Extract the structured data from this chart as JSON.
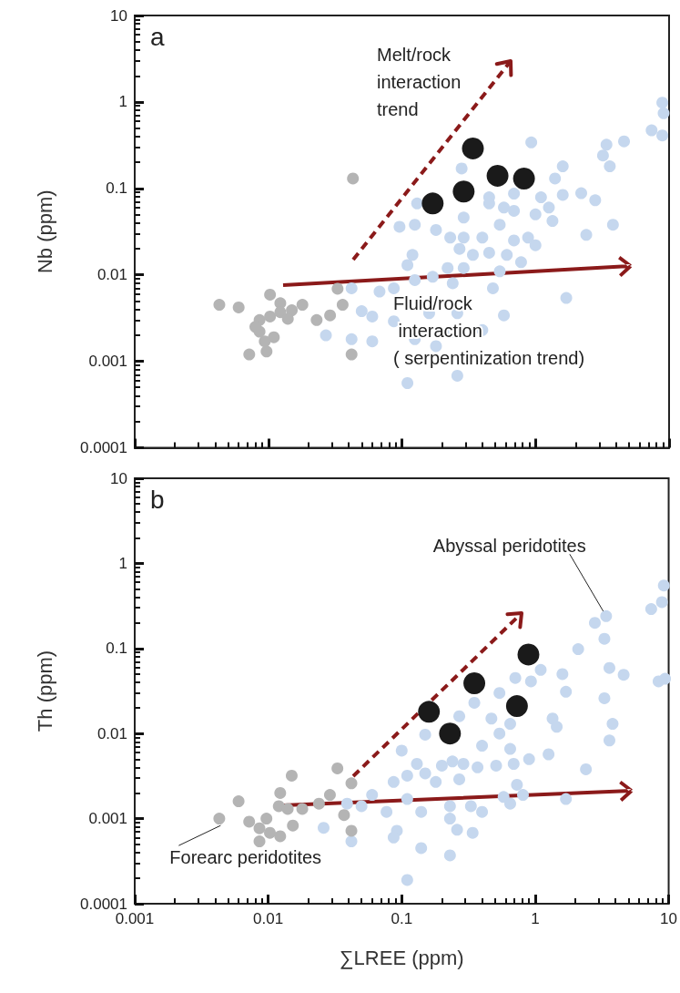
{
  "chart_data": [
    {
      "type": "scatter",
      "title": "a",
      "ylabel": "Nb (ppm)",
      "log": "xy",
      "xlim": [
        0.001,
        10
      ],
      "xticks": [
        0.001,
        0.01,
        0.1,
        1,
        10
      ],
      "ylim": [
        0.0001,
        10
      ],
      "yticks": [
        0.0001,
        0.001,
        0.01,
        0.1,
        1,
        10
      ],
      "tick_labels": "y",
      "grid": false,
      "marker": "circle",
      "annotations": [
        "Melt/rock\ninteraction\ntrend",
        "Fluid/rock\n interaction\n( serpentinization trend)"
      ],
      "series": [
        {
          "color": "#c5d7ee",
          "x": [
            8.9,
            9.1,
            7.4,
            8.9,
            4.6,
            3.4,
            3.2,
            3.6,
            1.6,
            1.4,
            0.93,
            0.28,
            2.8,
            2.2,
            1.6,
            1.26,
            1.1,
            0.69,
            0.58,
            0.45,
            0.45,
            0.69,
            3.8,
            2.4,
            1.0,
            1.34,
            0.29,
            0.13,
            0.096,
            0.125,
            0.18,
            0.23,
            0.29,
            0.4,
            0.54,
            0.69,
            0.88,
            1.0,
            0.27,
            0.34,
            0.45,
            0.61,
            0.78,
            0.54,
            0.29,
            0.22,
            0.12,
            0.11,
            0.125,
            0.17,
            0.24,
            0.48,
            1.7,
            0.042,
            0.068,
            0.087,
            0.05,
            0.06,
            0.16,
            0.26,
            0.58,
            0.027,
            0.042,
            0.06,
            0.125,
            0.24,
            0.4,
            0.26,
            0.11,
            0.18,
            0.087
          ],
          "values": [
            0.98,
            0.74,
            0.47,
            0.41,
            0.35,
            0.32,
            0.24,
            0.18,
            0.18,
            0.13,
            0.34,
            0.17,
            0.073,
            0.088,
            0.084,
            0.06,
            0.079,
            0.087,
            0.06,
            0.079,
            0.067,
            0.055,
            0.038,
            0.029,
            0.05,
            0.042,
            0.046,
            0.067,
            0.036,
            0.038,
            0.033,
            0.027,
            0.027,
            0.027,
            0.038,
            0.025,
            0.027,
            0.022,
            0.02,
            0.017,
            0.018,
            0.017,
            0.014,
            0.011,
            0.012,
            0.012,
            0.017,
            0.013,
            0.0087,
            0.0095,
            0.008,
            0.007,
            0.0054,
            0.007,
            0.0064,
            0.007,
            0.0038,
            0.0033,
            0.0036,
            0.0036,
            0.0034,
            0.002,
            0.0018,
            0.0017,
            0.0018,
            0.0022,
            0.0023,
            0.00068,
            0.00056,
            0.0015,
            0.0029
          ]
        },
        {
          "color": "#b4b4b4",
          "x": [
            0.043,
            0.0043,
            0.006,
            0.0103,
            0.0123,
            0.015,
            0.018,
            0.0086,
            0.0103,
            0.0123,
            0.0086,
            0.011,
            0.0094,
            0.0072,
            0.0097,
            0.023,
            0.029,
            0.033,
            0.036,
            0.042,
            0.014,
            0.008
          ],
          "values": [
            0.13,
            0.0045,
            0.0042,
            0.0059,
            0.0047,
            0.0039,
            0.0045,
            0.003,
            0.0033,
            0.0037,
            0.0022,
            0.0019,
            0.0017,
            0.0012,
            0.0013,
            0.003,
            0.0034,
            0.0069,
            0.0045,
            0.0012,
            0.0031,
            0.0025
          ]
        },
        {
          "color": "#1a1a1a",
          "x": [
            0.17,
            0.29,
            0.34,
            0.52,
            0.82
          ],
          "values": [
            0.067,
            0.092,
            0.29,
            0.14,
            0.13
          ]
        }
      ]
    },
    {
      "type": "scatter",
      "title": "b",
      "xlabel": "∑LREE (ppm)",
      "ylabel": "Th (ppm)",
      "log": "xy",
      "xlim": [
        0.001,
        10
      ],
      "xticks": [
        0.001,
        0.01,
        0.1,
        1,
        10
      ],
      "ylim": [
        0.0001,
        10
      ],
      "yticks": [
        0.0001,
        0.001,
        0.01,
        0.1,
        1,
        10
      ],
      "grid": false,
      "marker": "circle",
      "annotations": [
        {
          "text": "Abyssal peridotites",
          "x": 3.4,
          "y": 0.24
        },
        {
          "text": "Forearc peridotites",
          "x": 0.0044,
          "y": 0.00083
        }
      ],
      "series": [
        {
          "color": "#c5d7ee",
          "x": [
            9.2,
            8.9,
            7.4,
            3.4,
            2.8,
            3.3,
            2.1,
            3.6,
            4.6,
            8.4,
            9.4,
            1.6,
            1.7,
            3.3,
            3.8,
            3.6,
            1.35,
            1.45,
            1.26,
            2.4,
            1.7,
            1.1,
            0.93,
            0.71,
            0.54,
            0.35,
            0.27,
            0.47,
            0.65,
            0.54,
            0.4,
            0.65,
            0.9,
            0.69,
            0.51,
            0.37,
            0.29,
            0.24,
            0.2,
            0.15,
            0.13,
            0.15,
            0.1,
            0.087,
            0.11,
            0.18,
            0.27,
            0.73,
            0.81,
            0.58,
            0.06,
            0.05,
            0.039,
            0.077,
            0.11,
            0.14,
            0.23,
            0.33,
            0.4,
            0.65,
            0.23,
            0.026,
            0.042,
            0.092,
            0.087,
            0.26,
            0.34,
            0.14,
            0.23,
            0.11
          ],
          "values": [
            0.55,
            0.35,
            0.29,
            0.24,
            0.2,
            0.13,
            0.098,
            0.059,
            0.049,
            0.041,
            0.044,
            0.05,
            0.031,
            0.026,
            0.013,
            0.0083,
            0.015,
            0.012,
            0.0057,
            0.0038,
            0.0017,
            0.056,
            0.041,
            0.045,
            0.03,
            0.023,
            0.016,
            0.015,
            0.013,
            0.01,
            0.0072,
            0.0066,
            0.005,
            0.0044,
            0.0042,
            0.004,
            0.0044,
            0.0047,
            0.0042,
            0.0034,
            0.0044,
            0.0097,
            0.0063,
            0.0027,
            0.0032,
            0.0027,
            0.0029,
            0.0025,
            0.0019,
            0.0018,
            0.0019,
            0.0014,
            0.0015,
            0.0012,
            0.0017,
            0.0012,
            0.0014,
            0.0014,
            0.0012,
            0.0015,
            0.001,
            0.00078,
            0.00054,
            0.00072,
            0.0006,
            0.00074,
            0.00068,
            0.00045,
            0.00037,
            0.00019
          ]
        },
        {
          "color": "#b4b4b4",
          "x": [
            0.0043,
            0.006,
            0.0072,
            0.0086,
            0.0086,
            0.0103,
            0.012,
            0.0123,
            0.0123,
            0.014,
            0.015,
            0.0153,
            0.018,
            0.024,
            0.029,
            0.033,
            0.037,
            0.042,
            0.042,
            0.0097
          ],
          "values": [
            0.001,
            0.0016,
            0.00092,
            0.00077,
            0.00054,
            0.00068,
            0.0014,
            0.002,
            0.00062,
            0.0013,
            0.0032,
            0.00083,
            0.0013,
            0.0015,
            0.0019,
            0.0039,
            0.0011,
            0.0026,
            0.00072,
            0.001
          ]
        },
        {
          "color": "#1a1a1a",
          "x": [
            0.16,
            0.23,
            0.35,
            0.73,
            0.89
          ],
          "values": [
            0.018,
            0.01,
            0.039,
            0.021,
            0.085
          ]
        }
      ]
    }
  ]
}
